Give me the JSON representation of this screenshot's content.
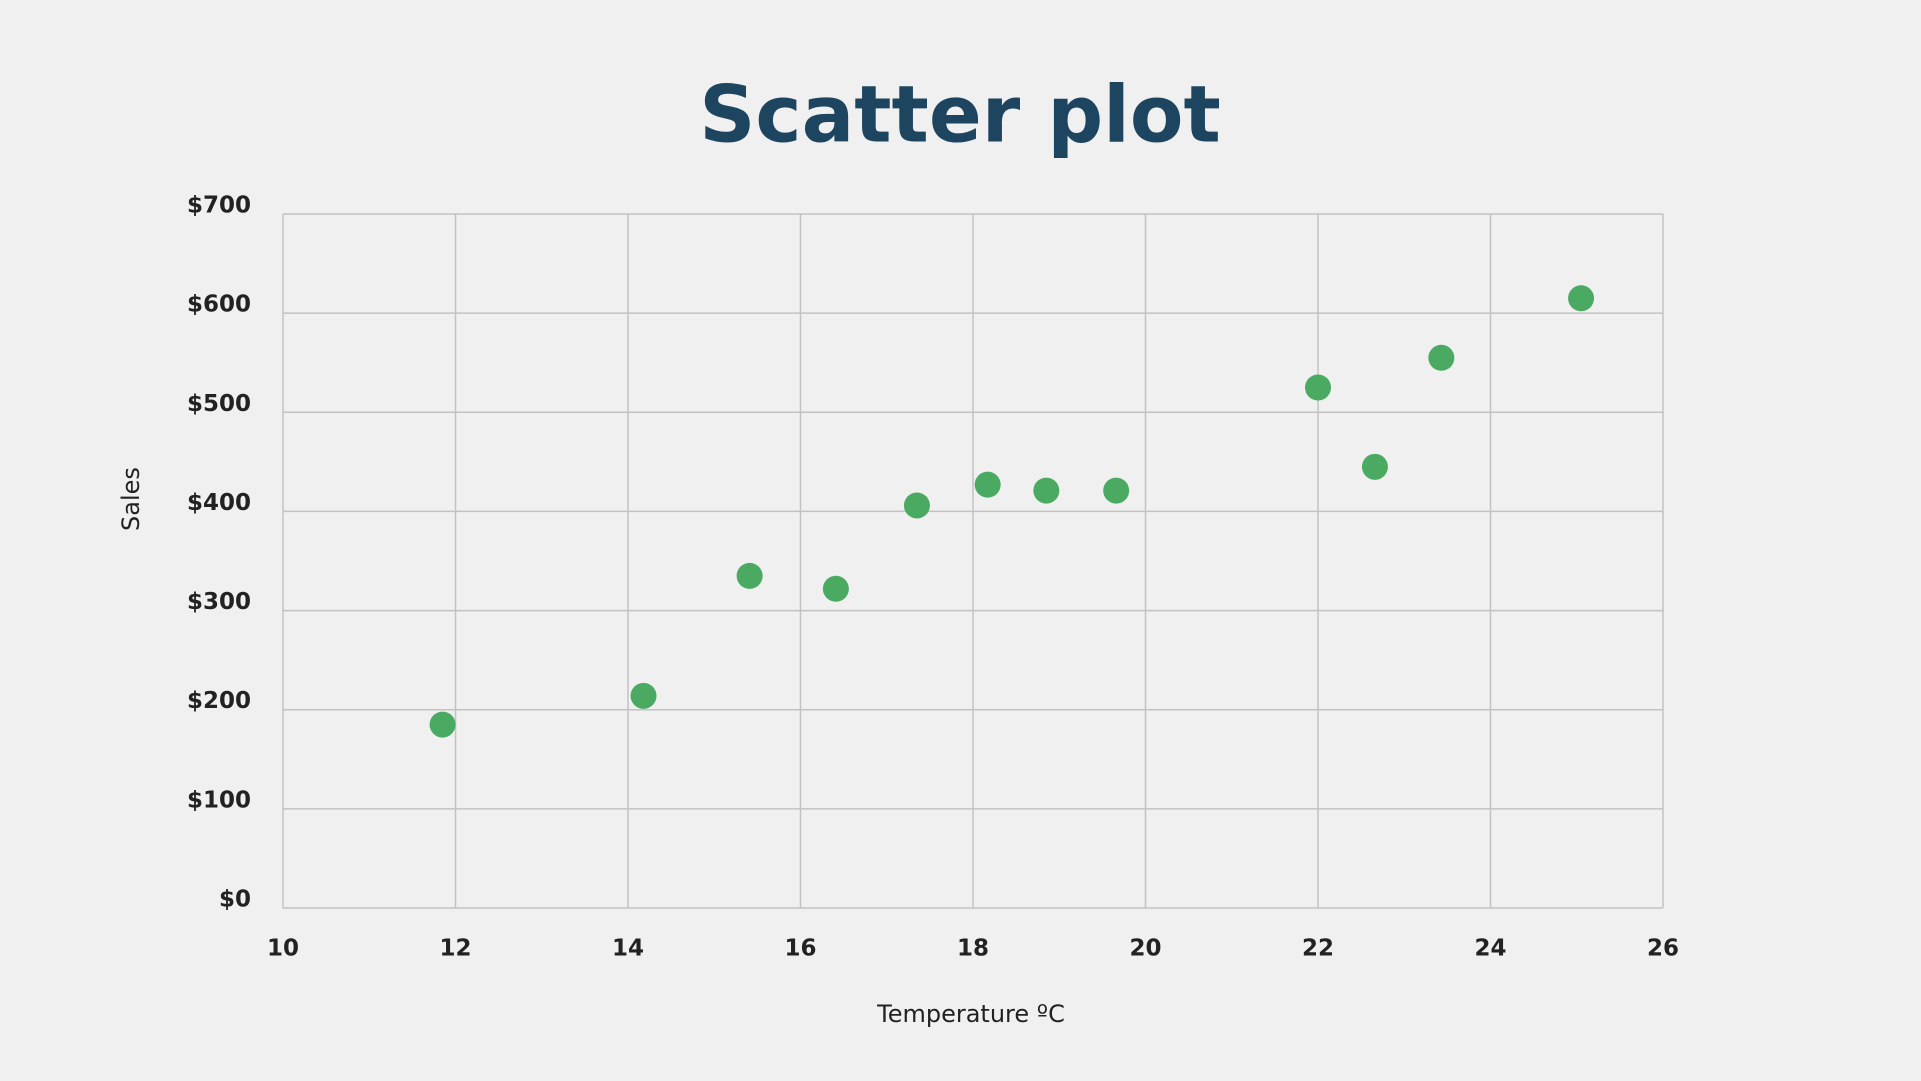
{
  "chart_data": {
    "type": "scatter",
    "title": "Scatter plot",
    "x_label": "Temperature ºC",
    "y_label": "Sales",
    "x": [
      11.85,
      14.18,
      15.41,
      16.41,
      17.35,
      18.17,
      18.85,
      19.66,
      22.0,
      22.66,
      23.43,
      25.05
    ],
    "values": [
      185,
      214,
      335,
      322,
      406,
      427,
      421,
      421,
      525,
      445,
      555,
      615
    ],
    "color": "#4aaa62",
    "xlim": [
      10,
      26
    ],
    "xticks": [
      10,
      12,
      14,
      16,
      18,
      20,
      22,
      24,
      26
    ],
    "ylim": [
      0,
      700
    ],
    "yticks": [
      {
        "value": 0,
        "label": "$0"
      },
      {
        "value": 100,
        "label": "$100"
      },
      {
        "value": 200,
        "label": "$200"
      },
      {
        "value": 300,
        "label": "$300"
      },
      {
        "value": 400,
        "label": "$400"
      },
      {
        "value": 500,
        "label": "$500"
      },
      {
        "value": 600,
        "label": "$600"
      },
      {
        "value": 700,
        "label": "$700"
      }
    ],
    "grid": true
  }
}
